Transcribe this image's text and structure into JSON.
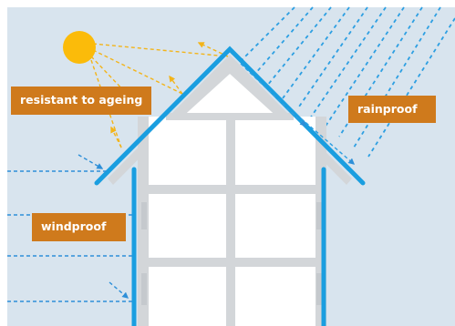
{
  "labels": {
    "ageing": "resistant to ageing",
    "rain": "rainproof",
    "wind": "windproof"
  },
  "colors": {
    "sky": "#d8e4ee",
    "membrane": "#1a9ee0",
    "sun": "#fbbb0a",
    "sun_rays": "#f3b419",
    "label_bg": "#cf7a1c",
    "label_text": "#ffffff",
    "rain": "#2d9fe2",
    "wind": "#2d8fd8",
    "structure": "#d3d6d9",
    "room": "#ffffff"
  },
  "icons": [
    "sun-icon",
    "house-icon",
    "rain-icon",
    "wind-icon"
  ]
}
